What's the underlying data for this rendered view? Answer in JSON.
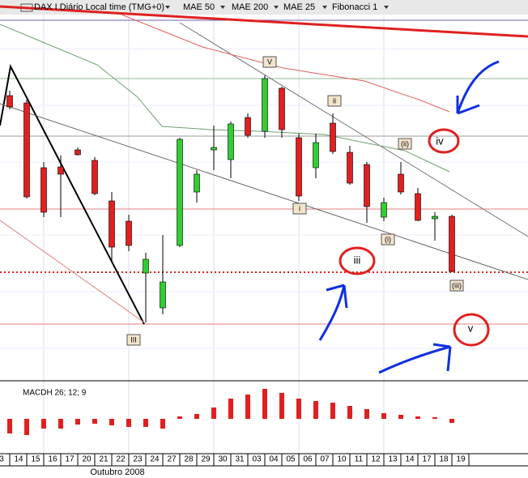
{
  "chart_data": {
    "type": "candlestick",
    "header": [
      "DAX I Diário Local time (TMG+0)",
      "MAE 50",
      "MAE 200",
      "MAE 25",
      "Fibonacci 1"
    ],
    "header_colors": [
      "#000000",
      "#e02020",
      "#2040c0",
      "#208040",
      "#000000"
    ],
    "categories": [
      "3",
      "14",
      "15",
      "16",
      "17",
      "20",
      "21",
      "22",
      "23",
      "24",
      "27",
      "28",
      "29",
      "30",
      "31",
      "03",
      "04",
      "05",
      "06",
      "07",
      "10",
      "11",
      "12",
      "13",
      "14",
      "17",
      "18",
      "19"
    ],
    "x_label": "Outubro 2008",
    "open": [
      null,
      352,
      343,
      263,
      264,
      285,
      272,
      222,
      197,
      133,
      90,
      167,
      233,
      285,
      273,
      325,
      308,
      361,
      300,
      263,
      318,
      282,
      267,
      202,
      255,
      231,
      200,
      203
    ],
    "high": [
      null,
      358,
      347,
      270,
      278,
      288,
      276,
      233,
      205,
      158,
      180,
      300,
      260,
      315,
      320,
      330,
      377,
      363,
      305,
      305,
      330,
      290,
      270,
      226,
      270,
      238,
      208,
      205
    ],
    "low": [
      null,
      335,
      225,
      202,
      202,
      278,
      229,
      148,
      160,
      72,
      82,
      165,
      220,
      260,
      250,
      300,
      300,
      300,
      222,
      250,
      280,
      242,
      195,
      197,
      230,
      197,
      173,
      134
    ],
    "close": [
      null,
      338,
      227,
      208,
      255,
      279,
      231,
      165,
      167,
      150,
      122,
      298,
      255,
      288,
      317,
      303,
      373,
      310,
      228,
      294,
      283,
      244,
      215,
      220,
      233,
      198,
      203,
      135
    ],
    "up_color": "#33cc33",
    "down_color": "#e02020",
    "ylim": [
      0,
      470
    ],
    "annotations": [
      "V",
      "ii",
      "(ii)",
      "i",
      "(i)",
      "(iii)",
      "III",
      "iv",
      "iii",
      "v"
    ],
    "macd": {
      "label": "MACDH 26; 12; 9",
      "color": "#e02020",
      "ylim": [
        -45,
        45
      ],
      "values": [
        null,
        -18,
        -20,
        -12,
        -12,
        -7,
        -6,
        -8,
        -10,
        -10,
        -12,
        3,
        6,
        14,
        25,
        30,
        37,
        32,
        25,
        22,
        20,
        16,
        12,
        7,
        5,
        3,
        2,
        -5
      ]
    }
  }
}
